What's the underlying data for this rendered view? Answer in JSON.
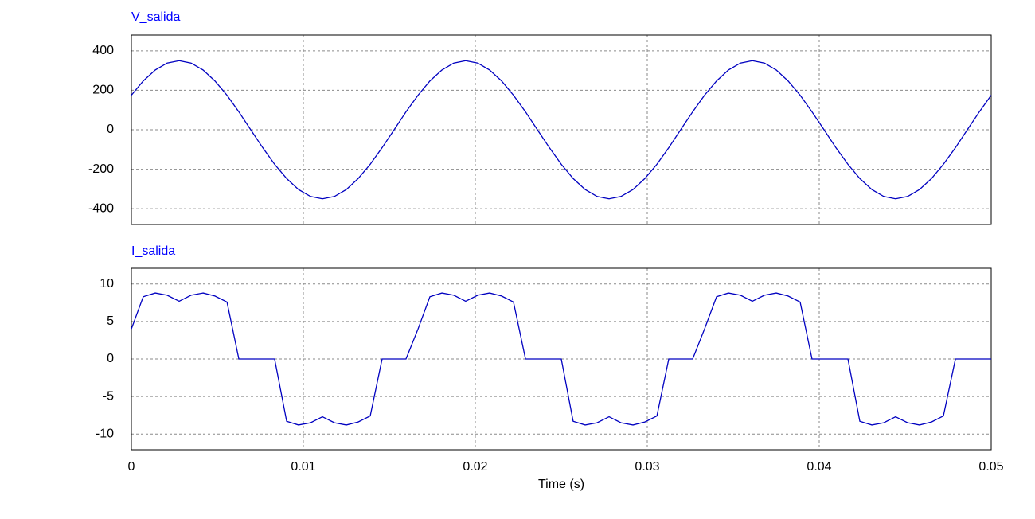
{
  "chart_data": [
    {
      "type": "line",
      "title": "V_salida",
      "x": [
        0,
        0.00069,
        0.00139,
        0.00208,
        0.00278,
        0.00347,
        0.00417,
        0.00486,
        0.00556,
        0.00625,
        0.00694,
        0.00764,
        0.00833,
        0.00903,
        0.00972,
        0.01042,
        0.01111,
        0.01181,
        0.0125,
        0.01319,
        0.01389,
        0.01458,
        0.01528,
        0.01597,
        0.01667,
        0.01736,
        0.01806,
        0.01875,
        0.01944,
        0.02014,
        0.02083,
        0.02153,
        0.02222,
        0.02292,
        0.02361,
        0.02431,
        0.025,
        0.02569,
        0.02639,
        0.02708,
        0.02778,
        0.02847,
        0.02917,
        0.02986,
        0.03056,
        0.03125,
        0.03194,
        0.03264,
        0.03333,
        0.03403,
        0.03472,
        0.03542,
        0.03611,
        0.03681,
        0.0375,
        0.03819,
        0.03889,
        0.03958,
        0.04028,
        0.04097,
        0.04167,
        0.04236,
        0.04306,
        0.04375,
        0.04444,
        0.04514,
        0.04583,
        0.04653,
        0.04722,
        0.04792,
        0.04861,
        0.04931,
        0.05
      ],
      "series": [
        {
          "name": "V_salida",
          "color": "#0000c0",
          "values": [
            175,
            247,
            303,
            338,
            350,
            338,
            303,
            247,
            175,
            91,
            0,
            -91,
            -175,
            -247,
            -303,
            -338,
            -350,
            -338,
            -303,
            -247,
            -175,
            -91,
            0,
            91,
            175,
            247,
            303,
            338,
            350,
            338,
            303,
            247,
            175,
            91,
            0,
            -91,
            -175,
            -247,
            -303,
            -338,
            -350,
            -338,
            -303,
            -247,
            -175,
            -91,
            0,
            91,
            175,
            247,
            303,
            338,
            350,
            338,
            303,
            247,
            175,
            91,
            0,
            -91,
            -175,
            -247,
            -303,
            -338,
            -350,
            -338,
            -303,
            -247,
            -175,
            -91,
            0,
            91,
            175
          ]
        }
      ],
      "xlim": [
        0,
        0.05
      ],
      "xticks": [
        0,
        0.01,
        0.02,
        0.03,
        0.04,
        0.05
      ],
      "ylim": [
        -480,
        480
      ],
      "yticks": [
        -400,
        -200,
        0,
        200,
        400
      ],
      "grid": true
    },
    {
      "type": "line",
      "title": "I_salida",
      "xlabel": "Time (s)",
      "x": [
        0,
        0.00069,
        0.00139,
        0.00208,
        0.00278,
        0.00347,
        0.00417,
        0.00486,
        0.00556,
        0.00625,
        0.00694,
        0.00764,
        0.00833,
        0.00903,
        0.00972,
        0.01042,
        0.01111,
        0.01181,
        0.0125,
        0.01319,
        0.01389,
        0.01458,
        0.01528,
        0.01597,
        0.01667,
        0.01736,
        0.01806,
        0.01875,
        0.01944,
        0.02014,
        0.02083,
        0.02153,
        0.02222,
        0.02292,
        0.02361,
        0.02431,
        0.025,
        0.02569,
        0.02639,
        0.02708,
        0.02778,
        0.02847,
        0.02917,
        0.02986,
        0.03056,
        0.03125,
        0.03194,
        0.03264,
        0.03333,
        0.03403,
        0.03472,
        0.03542,
        0.03611,
        0.03681,
        0.0375,
        0.03819,
        0.03889,
        0.03958,
        0.04028,
        0.04097,
        0.04167,
        0.04236,
        0.04306,
        0.04375,
        0.04444,
        0.04514,
        0.04583,
        0.04653,
        0.04722,
        0.04792,
        0.04861,
        0.04931,
        0.05
      ],
      "series": [
        {
          "name": "I_salida",
          "color": "#0000c0",
          "values": [
            4,
            8.3,
            8.8,
            8.5,
            7.7,
            8.5,
            8.8,
            8.4,
            7.6,
            0,
            0,
            0,
            0,
            -8.3,
            -8.8,
            -8.5,
            -7.7,
            -8.5,
            -8.8,
            -8.4,
            -7.6,
            0,
            0,
            0,
            4,
            8.3,
            8.8,
            8.5,
            7.7,
            8.5,
            8.8,
            8.4,
            7.6,
            0,
            0,
            0,
            0,
            -8.3,
            -8.8,
            -8.5,
            -7.7,
            -8.5,
            -8.8,
            -8.4,
            -7.6,
            0,
            0,
            0,
            4,
            8.3,
            8.8,
            8.5,
            7.7,
            8.5,
            8.8,
            8.4,
            7.6,
            0,
            0,
            0,
            0,
            -8.3,
            -8.8,
            -8.5,
            -7.7,
            -8.5,
            -8.8,
            -8.4,
            -7.6,
            0,
            0,
            0,
            0
          ]
        }
      ],
      "xlim": [
        0,
        0.05
      ],
      "xticks": [
        0,
        0.01,
        0.02,
        0.03,
        0.04,
        0.05
      ],
      "ylim": [
        -12.1,
        12.1
      ],
      "yticks": [
        -10,
        -5,
        0,
        5,
        10
      ],
      "grid": true
    }
  ]
}
